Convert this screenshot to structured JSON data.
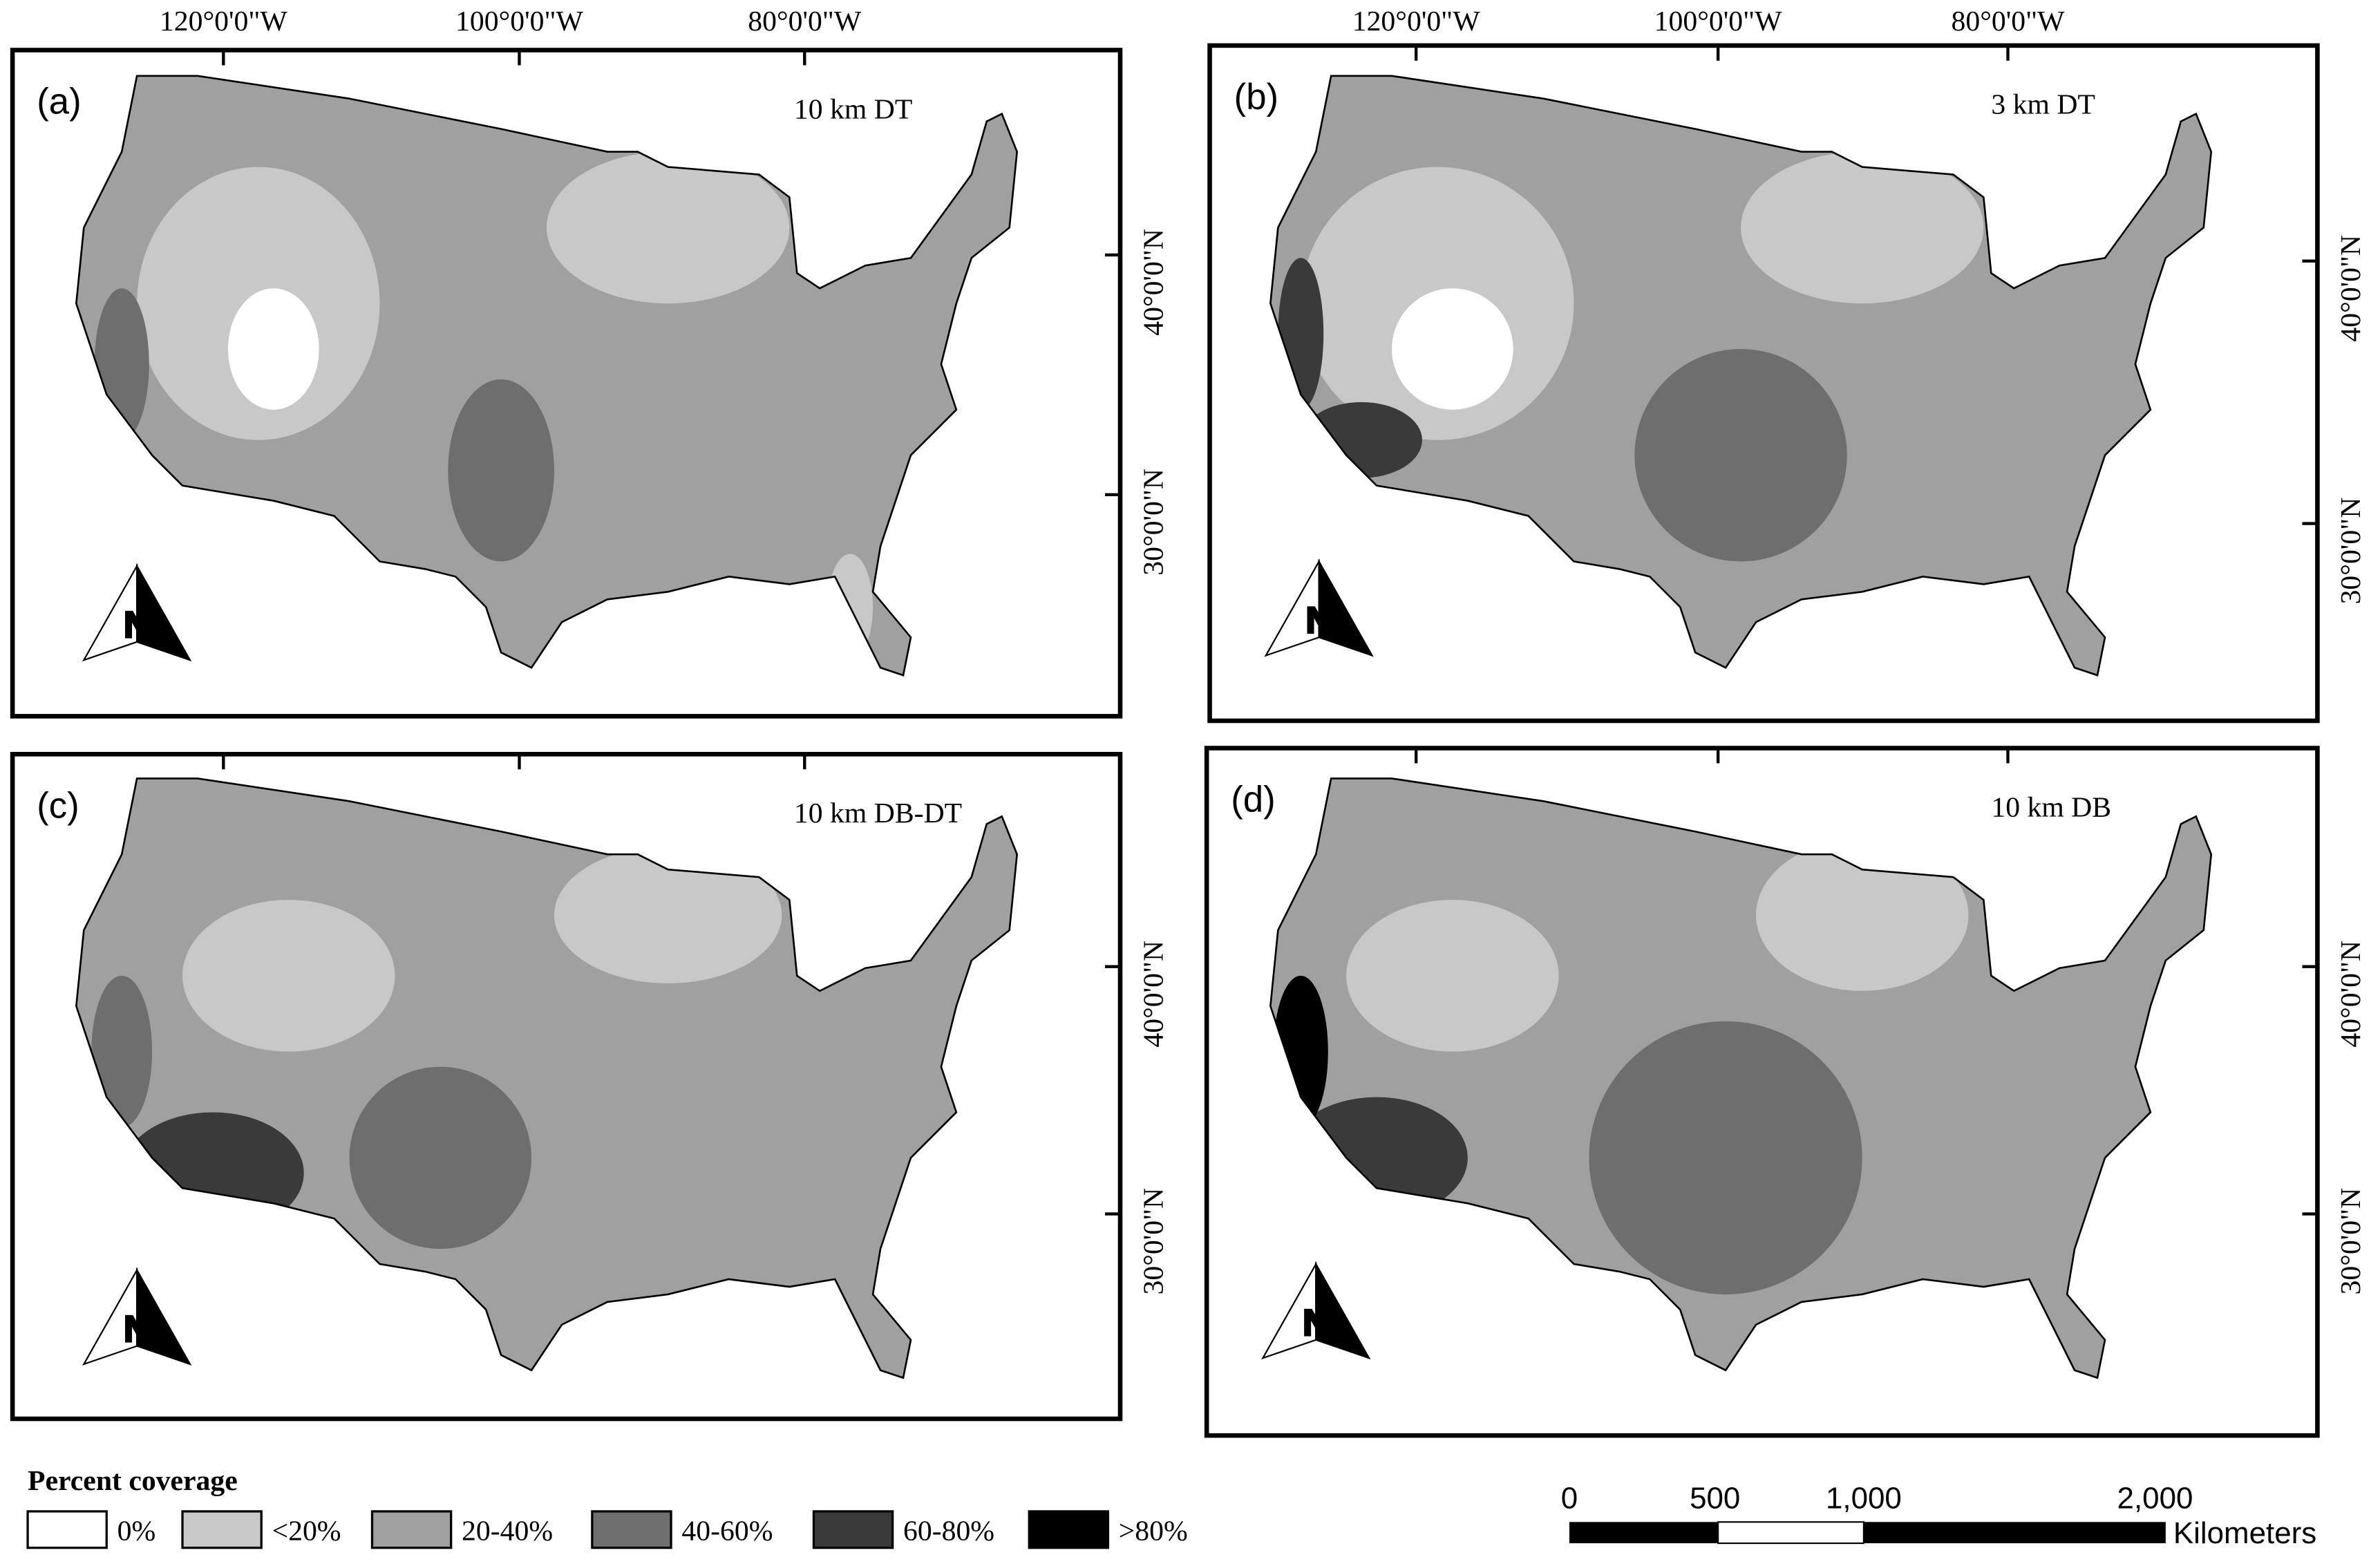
{
  "panels": [
    {
      "label": "(a)",
      "title": "10 km DT"
    },
    {
      "label": "(b)",
      "title": "3 km DT"
    },
    {
      "label": "(c)",
      "title": "10 km DB-DT"
    },
    {
      "label": "(d)",
      "title": "10 km DB"
    }
  ],
  "graticule": {
    "longitudes": [
      "120°0'0\"W",
      "100°0'0\"W",
      "80°0'0\"W"
    ],
    "latitudes": [
      "40°0'0\"N",
      "30°0'0\"N"
    ]
  },
  "north_arrow": "N",
  "legend": {
    "title": "Percent coverage",
    "items": [
      {
        "label": "0%",
        "color": "#ffffff"
      },
      {
        "label": "<20%",
        "color": "#c8c8c8"
      },
      {
        "label": "20-40%",
        "color": "#a0a0a0"
      },
      {
        "label": "40-60%",
        "color": "#6e6e6e"
      },
      {
        "label": "60-80%",
        "color": "#3a3a3a"
      },
      {
        "label": ">80%",
        "color": "#000000"
      }
    ]
  },
  "scale_bar": {
    "ticks": [
      "0",
      "500",
      "1,000",
      "2,000"
    ],
    "unit": "Kilometers"
  }
}
